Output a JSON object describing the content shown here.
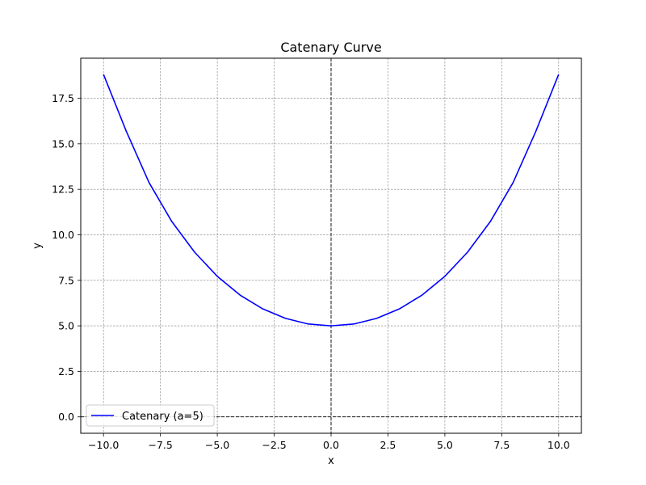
{
  "chart_data": {
    "type": "line",
    "title": "Catenary Curve",
    "xlabel": "x",
    "ylabel": "y",
    "xlim": [
      -11,
      11
    ],
    "ylim": [
      -0.9,
      19.7
    ],
    "xticks": [
      -10,
      -7.5,
      -5,
      -2.5,
      0,
      2.5,
      5,
      7.5,
      10
    ],
    "xtick_labels": [
      "−10.0",
      "−7.5",
      "−5.0",
      "−2.5",
      "0.0",
      "2.5",
      "5.0",
      "7.5",
      "10.0"
    ],
    "yticks": [
      0,
      2.5,
      5,
      7.5,
      10,
      12.5,
      15,
      17.5
    ],
    "ytick_labels": [
      "0.0",
      "2.5",
      "5.0",
      "7.5",
      "10.0",
      "12.5",
      "15.0",
      "17.5"
    ],
    "grid": true,
    "legend_position": "lower-left",
    "reference_lines": {
      "x": 0,
      "y": 0,
      "color": "#000000",
      "style": "dashed"
    },
    "series": [
      {
        "name": "Catenary (a=5)",
        "color": "#0000ff",
        "x": [
          -10,
          -9,
          -8,
          -7,
          -6,
          -5,
          -4,
          -3,
          -2,
          -1,
          0,
          1,
          2,
          3,
          4,
          5,
          6,
          7,
          8,
          9,
          10
        ],
        "y": [
          18.81,
          15.69,
          12.87,
          10.73,
          9.05,
          7.72,
          6.69,
          5.93,
          5.41,
          5.1,
          5.0,
          5.1,
          5.41,
          5.93,
          6.69,
          7.72,
          9.05,
          10.73,
          12.87,
          15.69,
          18.81
        ]
      }
    ]
  }
}
